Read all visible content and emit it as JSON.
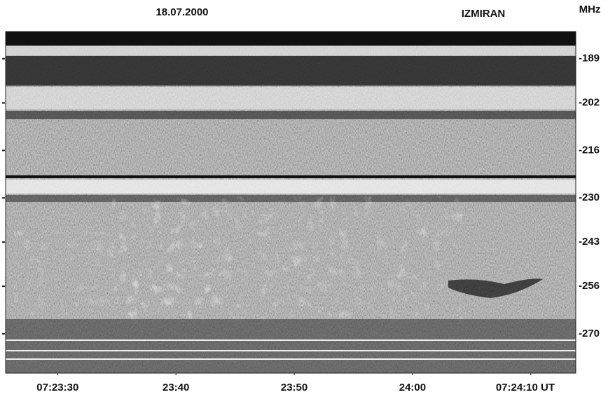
{
  "chart_data": {
    "type": "spectrogram",
    "title": "18.07.2000",
    "observatory": "IZMIRAN",
    "y_unit": "MHz",
    "ylim": [
      181,
      281.6
    ],
    "y_inverted": true,
    "yticks": [
      {
        "value": 189,
        "label": "-189"
      },
      {
        "value": 202,
        "label": "-202"
      },
      {
        "value": 216,
        "label": "-216"
      },
      {
        "value": 230,
        "label": "-230"
      },
      {
        "value": 243,
        "label": "-243"
      },
      {
        "value": 256,
        "label": "-256"
      },
      {
        "value": 270,
        "label": "-270"
      }
    ],
    "xlim": [
      26605.6,
      26653.8
    ],
    "xticks": [
      {
        "value": 26610,
        "label": "07:23:30"
      },
      {
        "value": 26620,
        "label": "23:40"
      },
      {
        "value": 26630,
        "label": "23:50"
      },
      {
        "value": 26640,
        "label": "24:00"
      },
      {
        "value": 26650,
        "label": "07:24:10 UT"
      }
    ]
  }
}
